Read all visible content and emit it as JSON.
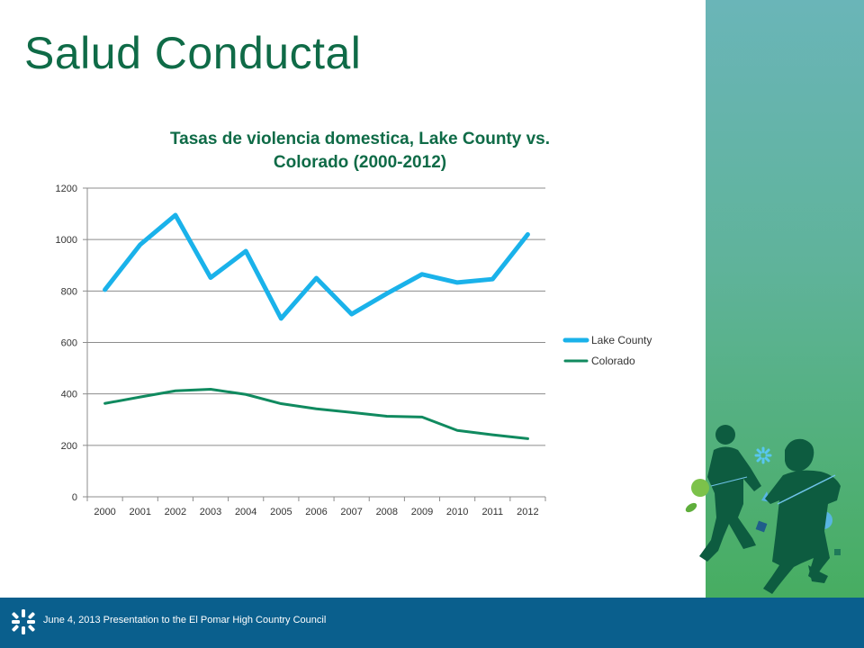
{
  "slide": {
    "title": "Salud Conductal",
    "footer": "June 4, 2013 Presentation to  the El Pomar High Country Council"
  },
  "colors": {
    "title_green": "#0f6b47",
    "footer_blue": "#0a5f8d",
    "side_teal": "#6ab5b8",
    "side_green": "#47ad61",
    "lake_county": "#1ab2ea",
    "colorado": "#108a5f",
    "gridline": "#8c8c8c"
  },
  "icons": {
    "footer_logo": "sparkle-logo-icon",
    "side_art": "children-silhouette-illustration"
  },
  "chart_data": {
    "type": "line",
    "title_lines": [
      "Tasas de violencia domestica, Lake County vs.",
      "Colorado (2000-2012)"
    ],
    "xlabel": "",
    "ylabel": "",
    "x": [
      "2000",
      "2001",
      "2002",
      "2003",
      "2004",
      "2005",
      "2006",
      "2007",
      "2008",
      "2009",
      "2010",
      "2011",
      "2012"
    ],
    "ylim": [
      0,
      1200
    ],
    "yticks": [
      0,
      200,
      400,
      600,
      800,
      1000,
      1200
    ],
    "grid": true,
    "legend_position": "right",
    "series": [
      {
        "name": "Lake County",
        "color": "#1ab2ea",
        "values": [
          805,
          980,
          1095,
          852,
          955,
          693,
          850,
          710,
          790,
          865,
          833,
          846,
          1020
        ]
      },
      {
        "name": "Colorado",
        "color": "#108a5f",
        "values": [
          363,
          388,
          412,
          418,
          398,
          362,
          342,
          328,
          313,
          310,
          258,
          241,
          226
        ]
      }
    ]
  }
}
